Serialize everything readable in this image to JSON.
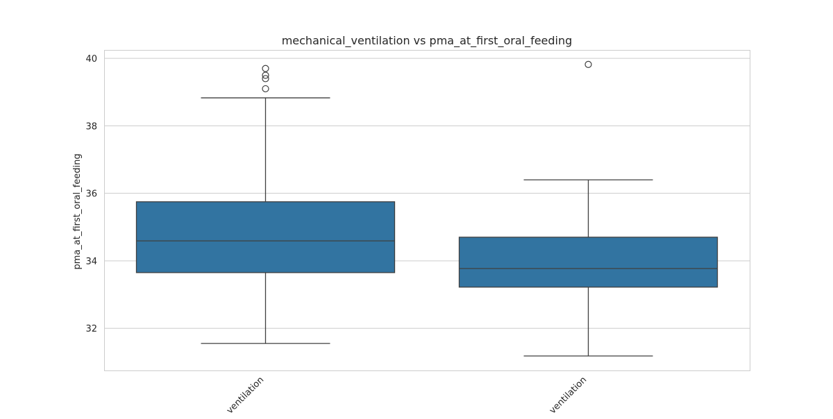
{
  "chart_data": {
    "type": "box",
    "title": "mechanical_ventilation vs pma_at_first_oral_feeding",
    "xlabel": "",
    "ylabel": "pma_at_first_oral_feeding",
    "ylim": [
      30.75,
      40.25
    ],
    "yticks": [
      32,
      34,
      36,
      38,
      40
    ],
    "ytick_labels": [
      "32",
      "34",
      "36",
      "38",
      "40"
    ],
    "grid": true,
    "box_color": "#3274a1",
    "categories": [
      "ventilation",
      "ventilation"
    ],
    "boxes": [
      {
        "whisker_low": 31.55,
        "q1": 33.65,
        "median": 34.59,
        "q3": 35.75,
        "whisker_high": 38.83,
        "outliers": [
          39.1,
          39.4,
          39.5,
          39.7
        ]
      },
      {
        "whisker_low": 31.18,
        "q1": 33.22,
        "median": 33.77,
        "q3": 34.7,
        "whisker_high": 36.4,
        "outliers": [
          39.82
        ]
      }
    ]
  }
}
